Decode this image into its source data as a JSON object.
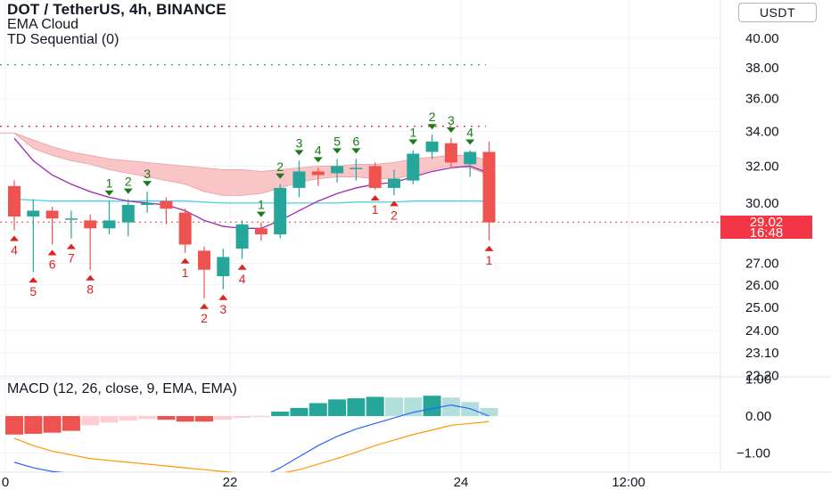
{
  "header": {
    "symbol_line": "DOT / TetherUS, 4h, BINANCE",
    "indicators": [
      "EMA Cloud",
      "TD Sequential (0)"
    ]
  },
  "currency_button": "USDT",
  "price_badge": {
    "price": "29.02",
    "countdown": "16:48"
  },
  "macd_label": "MACD (12, 26, close, 9, EMA, EMA)",
  "colors": {
    "up": "#26a69a",
    "down": "#ef5350",
    "cloud": "#f7b1b3",
    "ema_purple": "#9c27b0",
    "ema_cyan": "#4dd0e1",
    "macd_line": "#2962ff",
    "signal_line": "#ff9800",
    "green_level": "#4caf50",
    "red_level": "#f23645"
  },
  "chart_data": [
    {
      "type": "candlestick",
      "title": "DOT / TetherUS, 4h, BINANCE",
      "y_scale": "log",
      "y_ticks": [
        "40.00",
        "38.00",
        "36.00",
        "34.00",
        "32.00",
        "30.00",
        "29.02",
        "27.00",
        "26.00",
        "25.00",
        "24.00",
        "23.10",
        "22.20"
      ],
      "x_ticks": [
        "0",
        "22",
        "24",
        "12:00"
      ],
      "current_price": 29.02,
      "horizontal_levels": [
        {
          "value": 38.2,
          "color": "green",
          "style": "dotted"
        },
        {
          "value": 34.3,
          "color": "red",
          "style": "dotted"
        },
        {
          "value": 29.02,
          "color": "red",
          "style": "dotted"
        }
      ],
      "candles": [
        {
          "o": 30.9,
          "h": 31.2,
          "l": 28.6,
          "c": 29.3
        },
        {
          "o": 29.3,
          "h": 30.2,
          "l": 26.6,
          "c": 29.6
        },
        {
          "o": 29.6,
          "h": 29.8,
          "l": 27.9,
          "c": 29.2
        },
        {
          "o": 29.2,
          "h": 29.6,
          "l": 28.2,
          "c": 29.2
        },
        {
          "o": 29.1,
          "h": 29.4,
          "l": 26.7,
          "c": 28.7
        },
        {
          "o": 28.7,
          "h": 30.1,
          "l": 28.4,
          "c": 29.1
        },
        {
          "o": 29.0,
          "h": 30.2,
          "l": 28.3,
          "c": 29.9
        },
        {
          "o": 29.9,
          "h": 30.6,
          "l": 29.5,
          "c": 30.0
        },
        {
          "o": 30.1,
          "h": 30.3,
          "l": 28.9,
          "c": 29.7
        },
        {
          "o": 29.5,
          "h": 29.7,
          "l": 27.5,
          "c": 27.9
        },
        {
          "o": 27.6,
          "h": 27.8,
          "l": 25.4,
          "c": 26.7
        },
        {
          "o": 26.4,
          "h": 27.7,
          "l": 25.8,
          "c": 27.3
        },
        {
          "o": 27.7,
          "h": 29.1,
          "l": 27.2,
          "c": 28.9
        },
        {
          "o": 28.7,
          "h": 29.0,
          "l": 28.1,
          "c": 28.4
        },
        {
          "o": 28.4,
          "h": 31.0,
          "l": 28.2,
          "c": 30.8
        },
        {
          "o": 30.8,
          "h": 32.3,
          "l": 30.3,
          "c": 31.7
        },
        {
          "o": 31.7,
          "h": 31.9,
          "l": 30.9,
          "c": 31.5
        },
        {
          "o": 31.6,
          "h": 32.4,
          "l": 31.1,
          "c": 32.0
        },
        {
          "o": 31.9,
          "h": 32.4,
          "l": 31.2,
          "c": 31.9
        },
        {
          "o": 32.0,
          "h": 32.2,
          "l": 30.7,
          "c": 30.8
        },
        {
          "o": 30.8,
          "h": 31.8,
          "l": 30.4,
          "c": 31.3
        },
        {
          "o": 31.2,
          "h": 32.9,
          "l": 31.0,
          "c": 32.7
        },
        {
          "o": 32.8,
          "h": 33.8,
          "l": 32.4,
          "c": 33.4
        },
        {
          "o": 33.3,
          "h": 33.6,
          "l": 31.9,
          "c": 32.2
        },
        {
          "o": 32.1,
          "h": 32.9,
          "l": 31.4,
          "c": 32.8
        },
        {
          "o": 32.8,
          "h": 33.4,
          "l": 28.1,
          "c": 29.0
        }
      ],
      "ema_cloud_upper": [
        33.9,
        33.5,
        33.1,
        32.8,
        32.6,
        32.4,
        32.3,
        32.2,
        32.1,
        32.0,
        31.9,
        31.8,
        31.8,
        31.7,
        31.8,
        31.9,
        32.0,
        32.0,
        32.1,
        32.1,
        32.2,
        32.4,
        32.5,
        32.6,
        32.6,
        32.3
      ],
      "ema_cloud_lower": [
        33.9,
        33.0,
        32.6,
        32.3,
        32.1,
        31.8,
        31.6,
        31.4,
        31.2,
        31.0,
        30.6,
        30.4,
        30.4,
        30.5,
        30.8,
        31.1,
        31.3,
        31.4,
        31.4,
        31.3,
        31.3,
        31.5,
        31.8,
        32.0,
        31.9,
        31.5
      ],
      "ema_purple": [
        33.6,
        32.3,
        31.5,
        31.0,
        30.6,
        30.3,
        30.1,
        30.0,
        29.9,
        29.6,
        29.1,
        28.8,
        28.7,
        28.7,
        29.1,
        29.6,
        30.1,
        30.5,
        30.8,
        31.0,
        31.1,
        31.4,
        31.7,
        31.9,
        32.0,
        31.6
      ],
      "ema_cyan": [
        30.2,
        30.15,
        30.1,
        30.1,
        30.1,
        30.1,
        30.1,
        30.1,
        30.1,
        30.1,
        30.05,
        30.0,
        30.0,
        30.0,
        30.0,
        30.0,
        30.0,
        30.0,
        30.05,
        30.05,
        30.05,
        30.1,
        30.1,
        30.1,
        30.1,
        30.1
      ],
      "td_counts": [
        {
          "candle": 0,
          "label": "4",
          "type": "sell"
        },
        {
          "candle": 1,
          "label": "5",
          "type": "sell"
        },
        {
          "candle": 2,
          "label": "6",
          "type": "sell"
        },
        {
          "candle": 3,
          "label": "7",
          "type": "sell"
        },
        {
          "candle": 4,
          "label": "8",
          "type": "sell"
        },
        {
          "candle": 5,
          "label": "1",
          "type": "buy"
        },
        {
          "candle": 6,
          "label": "2",
          "type": "buy"
        },
        {
          "candle": 7,
          "label": "3",
          "type": "buy"
        },
        {
          "candle": 9,
          "label": "1",
          "type": "sell"
        },
        {
          "candle": 10,
          "label": "2",
          "type": "sell"
        },
        {
          "candle": 11,
          "label": "3",
          "type": "sell"
        },
        {
          "candle": 12,
          "label": "4",
          "type": "sell"
        },
        {
          "candle": 13,
          "label": "1",
          "type": "buy"
        },
        {
          "candle": 14,
          "label": "2",
          "type": "buy"
        },
        {
          "candle": 15,
          "label": "3",
          "type": "buy"
        },
        {
          "candle": 16,
          "label": "4",
          "type": "buy"
        },
        {
          "candle": 17,
          "label": "5",
          "type": "buy"
        },
        {
          "candle": 18,
          "label": "6",
          "type": "buy"
        },
        {
          "candle": 19,
          "label": "1",
          "type": "sell"
        },
        {
          "candle": 20,
          "label": "2",
          "type": "sell"
        },
        {
          "candle": 21,
          "label": "1",
          "type": "buy"
        },
        {
          "candle": 22,
          "label": "2",
          "type": "buy"
        },
        {
          "candle": 23,
          "label": "3",
          "type": "buy"
        },
        {
          "candle": 24,
          "label": "4",
          "type": "buy"
        },
        {
          "candle": 25,
          "label": "1",
          "type": "sell"
        }
      ]
    },
    {
      "type": "bar",
      "title": "MACD (12, 26, close, 9, EMA, EMA)",
      "y_ticks": [
        "1.00",
        "0.00",
        "−1.00"
      ],
      "ylim": [
        -1.3,
        1.1
      ],
      "histogram": [
        -0.5,
        -0.48,
        -0.45,
        -0.4,
        -0.25,
        -0.18,
        -0.12,
        -0.08,
        -0.1,
        -0.15,
        -0.15,
        -0.1,
        -0.05,
        -0.03,
        0.12,
        0.22,
        0.35,
        0.45,
        0.48,
        0.52,
        0.5,
        0.5,
        0.55,
        0.5,
        0.38,
        0.22
      ],
      "histogram_style": [
        "strong",
        "strong",
        "strong",
        "strong",
        "light",
        "light",
        "light",
        "light",
        "strong",
        "strong",
        "strong",
        "light",
        "light",
        "light",
        "strong",
        "strong",
        "strong",
        "strong",
        "strong",
        "strong",
        "light",
        "light",
        "strong",
        "light",
        "light",
        "light"
      ],
      "macd": [
        -1.25,
        -1.4,
        -1.5,
        -1.55,
        -1.6,
        -1.65,
        -1.7,
        -1.7,
        -1.7,
        -1.75,
        -1.85,
        -1.9,
        -1.8,
        -1.65,
        -1.4,
        -1.1,
        -0.8,
        -0.55,
        -0.35,
        -0.2,
        -0.05,
        0.1,
        0.2,
        0.3,
        0.2,
        0.0
      ],
      "signal": [
        -0.6,
        -0.8,
        -0.95,
        -1.05,
        -1.15,
        -1.2,
        -1.25,
        -1.3,
        -1.35,
        -1.4,
        -1.45,
        -1.5,
        -1.55,
        -1.6,
        -1.55,
        -1.45,
        -1.3,
        -1.15,
        -0.98,
        -0.8,
        -0.65,
        -0.5,
        -0.38,
        -0.25,
        -0.2,
        -0.15
      ]
    }
  ]
}
